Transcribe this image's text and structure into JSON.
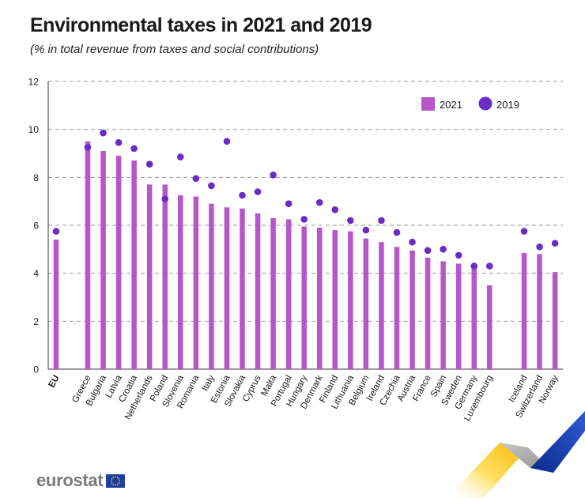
{
  "chart_data": {
    "type": "bar",
    "title": "Environmental taxes in 2021 and 2019",
    "subtitle": "(% in total revenue from taxes and social contributions)",
    "categories": [
      "EU",
      "Greece",
      "Bulgaria",
      "Latvia",
      "Croatia",
      "Netherlands",
      "Poland",
      "Slovenia",
      "Romania",
      "Italy",
      "Estonia",
      "Slovakia",
      "Cyprus",
      "Malta",
      "Portugal",
      "Hungary",
      "Denmark",
      "Finland",
      "Lithuania",
      "Belgium",
      "Ireland",
      "Czechia",
      "Austria",
      "France",
      "Spain",
      "Sweden",
      "Germany",
      "Luxembourg",
      "Iceland",
      "Switzerland",
      "Norway"
    ],
    "series": [
      {
        "name": "2021",
        "mark": "bar",
        "color": "#b656c9",
        "values": [
          5.4,
          9.5,
          9.1,
          8.9,
          8.7,
          7.7,
          7.7,
          7.25,
          7.2,
          6.9,
          6.75,
          6.7,
          6.5,
          6.3,
          6.25,
          5.95,
          5.9,
          5.8,
          5.75,
          5.45,
          5.3,
          5.1,
          4.95,
          4.65,
          4.5,
          4.4,
          4.2,
          3.5,
          4.85,
          4.8,
          4.05
        ]
      },
      {
        "name": "2019",
        "mark": "dot",
        "color": "#6a2bc7",
        "values": [
          5.75,
          9.25,
          9.85,
          9.45,
          9.2,
          8.55,
          7.1,
          8.85,
          7.95,
          7.65,
          9.5,
          7.25,
          7.4,
          8.1,
          6.9,
          6.25,
          6.95,
          6.65,
          6.2,
          5.8,
          6.2,
          5.7,
          5.3,
          4.95,
          5.0,
          4.75,
          4.3,
          4.3,
          5.75,
          5.1,
          5.25
        ]
      }
    ],
    "yaxis": {
      "min": 0,
      "max": 12,
      "ticks": [
        "0",
        "2",
        "4",
        "6",
        "8",
        "10",
        "12"
      ]
    },
    "grid": true,
    "legend_position": "top-right",
    "bold_categories": [
      "EU"
    ]
  },
  "colors": {
    "bar": "#b656c9",
    "dot": "#6a2bc7",
    "grid": "#9a9a9a",
    "logo_text": "#7a7a7a",
    "flag_blue": "#1f3fa3",
    "flag_star": "#ffd200"
  },
  "footer": {
    "logo_text": "eurostat",
    "flag_icon": "eu-flag-icon"
  }
}
